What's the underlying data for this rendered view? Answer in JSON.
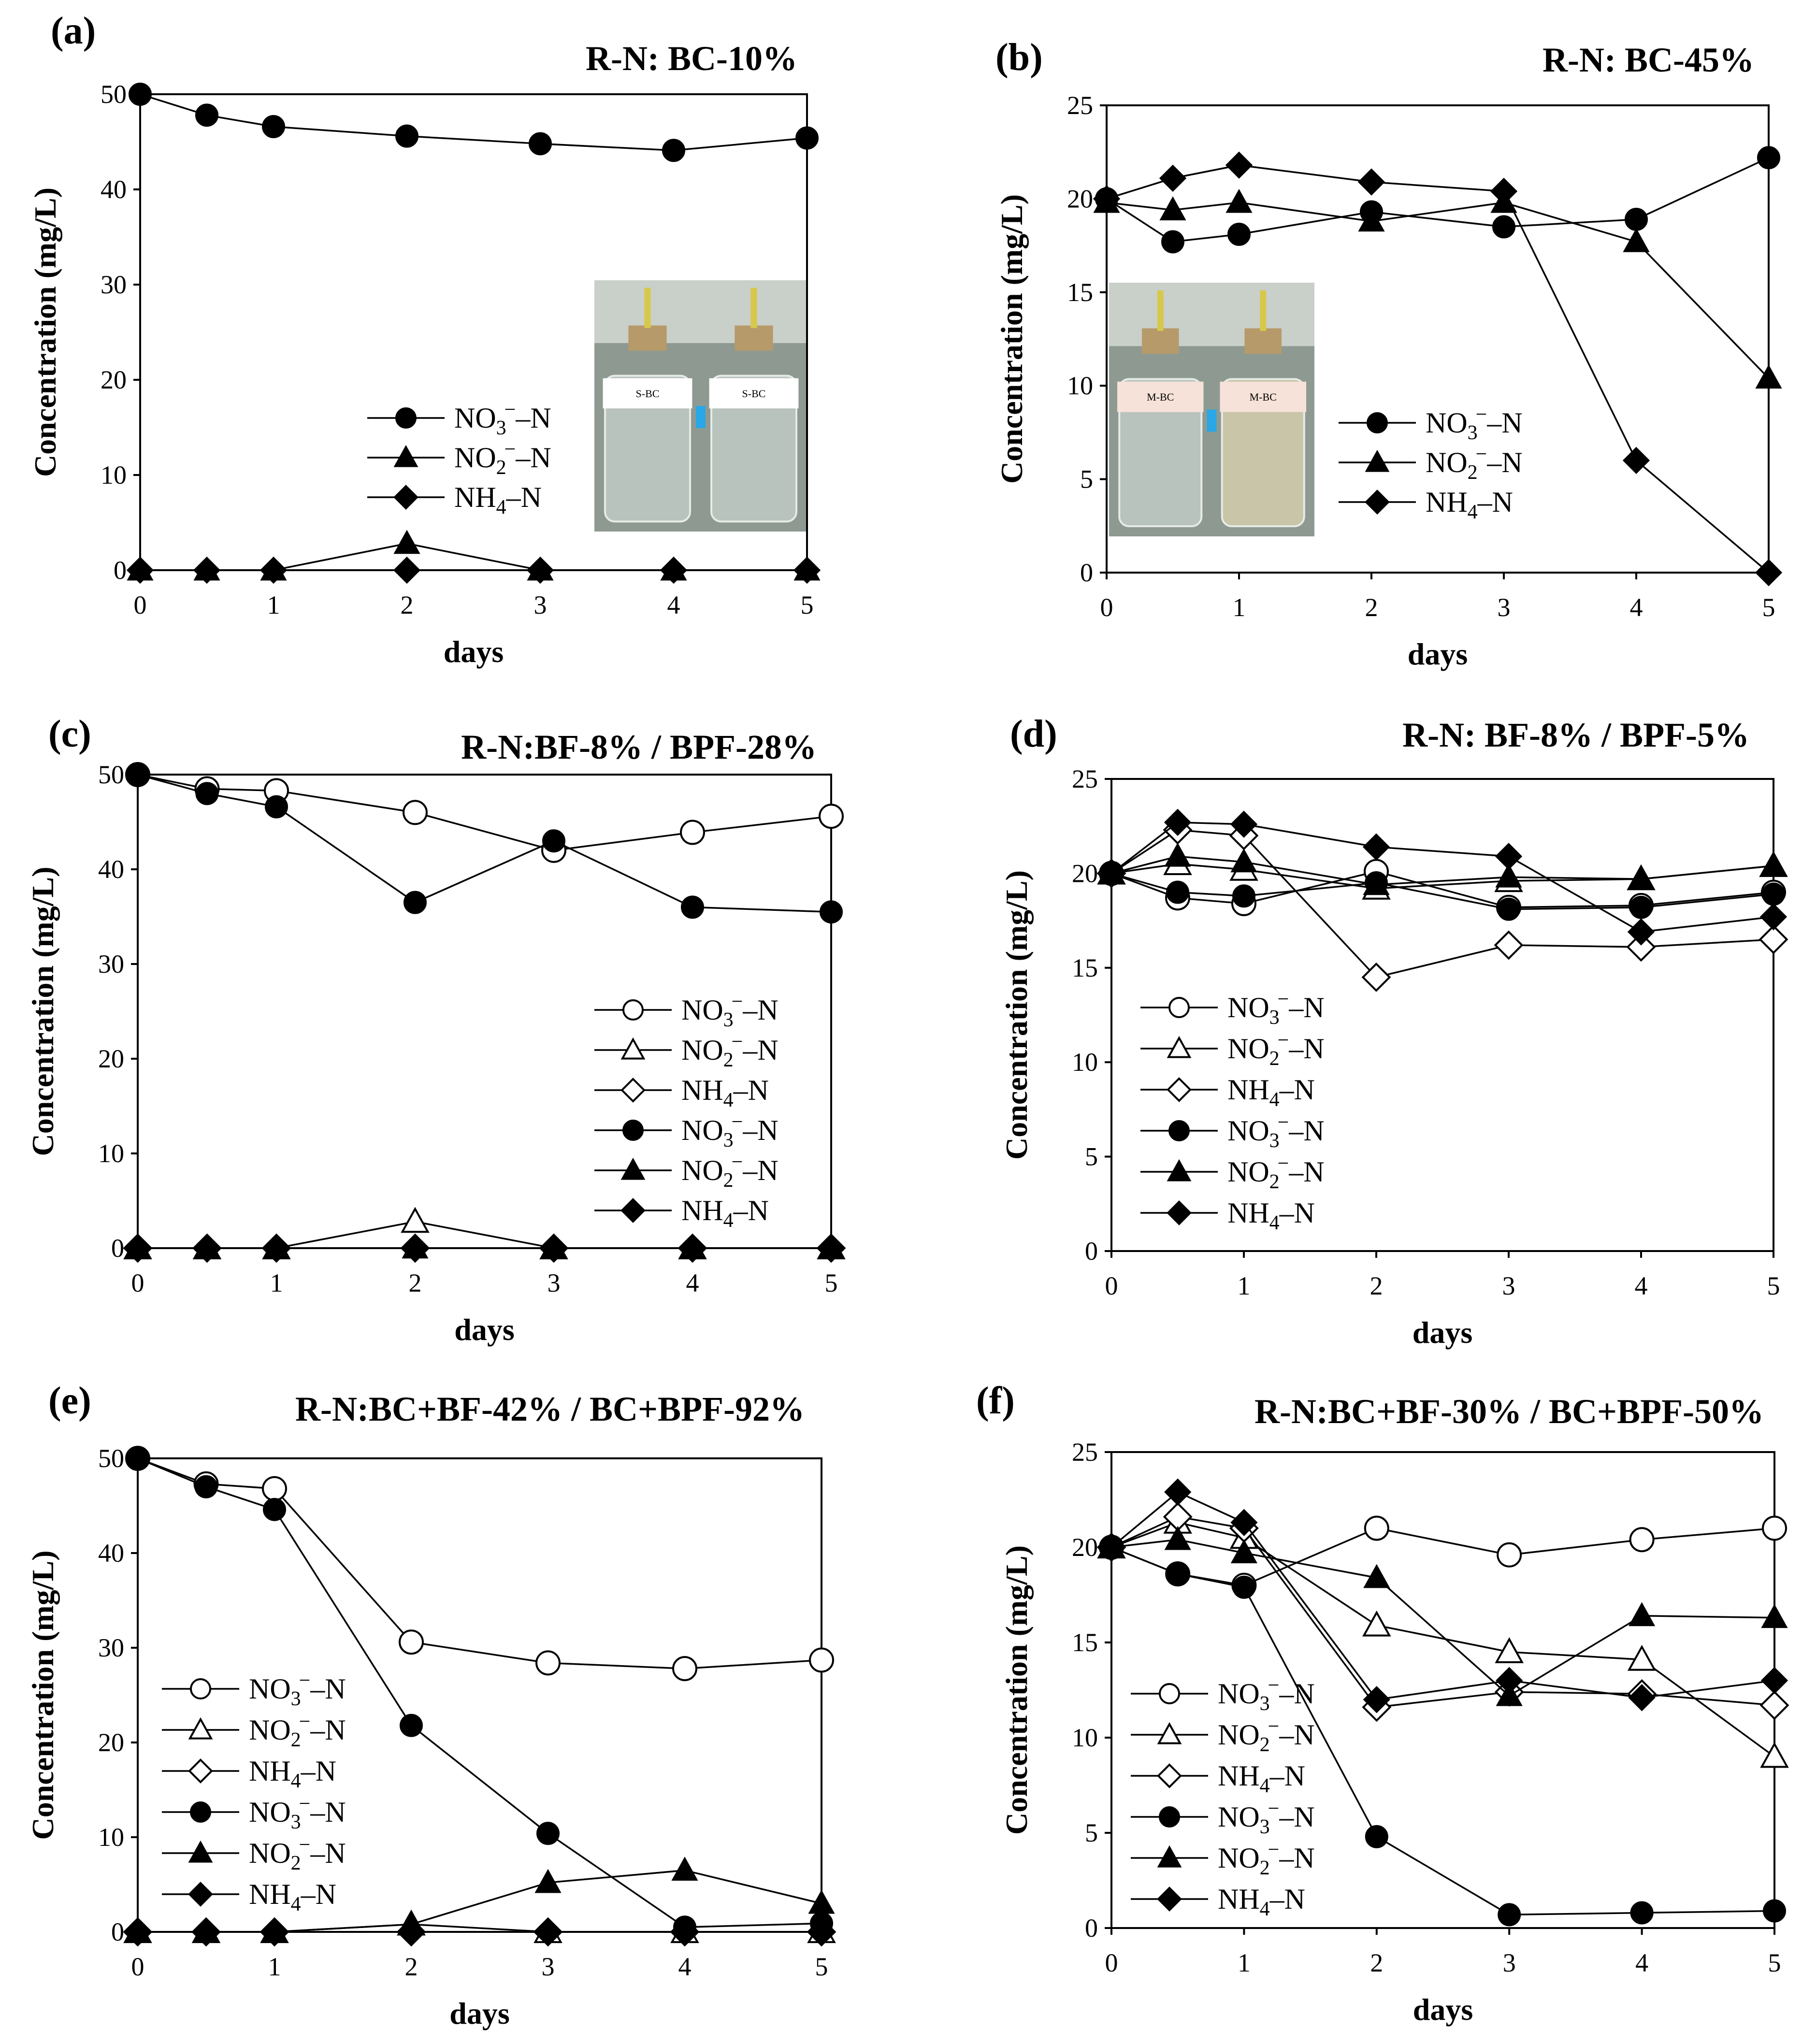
{
  "figure": {
    "panels": [
      {
        "label": "(a)",
        "title": "R-N: BC-10%"
      },
      {
        "label": "(b)",
        "title": "R-N: BC-45%"
      },
      {
        "label": "(c)",
        "title": "R-N:BF-8% / BPF-28%"
      },
      {
        "label": "(d)",
        "title": "R-N: BF-8% / BPF-5%"
      },
      {
        "label": "(e)",
        "title": "R-N:BC+BF-42% / BC+BPF-92%"
      },
      {
        "label": "(f)",
        "title": "R-N:BC+BF-30% / BC+BPF-50%"
      }
    ]
  },
  "chart_data": [
    {
      "type": "line",
      "title": "R-N: BC-10%",
      "label": "(a)",
      "xlabel": "days",
      "ylabel": "Concentration (mg/L)",
      "xlim": [
        0,
        5
      ],
      "ylim": [
        0,
        50
      ],
      "xticks": [
        0,
        1,
        2,
        3,
        4,
        5
      ],
      "yticks": [
        0,
        10,
        20,
        30,
        40,
        50
      ],
      "x": [
        0,
        0.5,
        1,
        2,
        3,
        4,
        5
      ],
      "legend_position": "center-left",
      "inset_photo": {
        "labels": [
          "S-BC",
          "S-BC"
        ]
      },
      "series": [
        {
          "name": "NO3−–N",
          "marker": "circle",
          "filled": true,
          "values": [
            50,
            47.8,
            46.6,
            45.6,
            44.8,
            44.1,
            45.4
          ]
        },
        {
          "name": "NO2−–N",
          "marker": "triangle",
          "filled": true,
          "values": [
            0,
            0,
            0,
            2.8,
            0,
            0,
            0
          ]
        },
        {
          "name": "NH4–N",
          "marker": "diamond",
          "filled": true,
          "values": [
            0,
            0,
            0,
            0,
            0,
            0,
            0
          ]
        }
      ]
    },
    {
      "type": "line",
      "title": "R-N: BC-45%",
      "label": "(b)",
      "xlabel": "days",
      "ylabel": "Concentration (mg/L)",
      "xlim": [
        0,
        5
      ],
      "ylim": [
        0,
        25
      ],
      "xticks": [
        0,
        1,
        2,
        3,
        4,
        5
      ],
      "yticks": [
        0,
        5,
        10,
        15,
        20,
        25
      ],
      "x": [
        0,
        0.5,
        1,
        2,
        3,
        4,
        5
      ],
      "legend_position": "center-right",
      "inset_photo": {
        "labels": [
          "M-BC",
          "M-BC"
        ]
      },
      "series": [
        {
          "name": "NO3−–N",
          "marker": "circle",
          "filled": true,
          "values": [
            20,
            17.7,
            18.1,
            19.3,
            18.5,
            18.9,
            22.2
          ]
        },
        {
          "name": "NO2−–N",
          "marker": "triangle",
          "filled": true,
          "values": [
            19.8,
            19.4,
            19.8,
            18.8,
            19.8,
            17.7,
            10.4
          ]
        },
        {
          "name": "NH4–N",
          "marker": "diamond",
          "filled": true,
          "values": [
            20,
            21.1,
            21.8,
            20.9,
            20.4,
            6,
            0
          ]
        }
      ]
    },
    {
      "type": "line",
      "title": "R-N:BF-8% / BPF-28%",
      "label": "(c)",
      "xlabel": "days",
      "ylabel": "Concentration (mg/L)",
      "xlim": [
        0,
        5
      ],
      "ylim": [
        0,
        50
      ],
      "xticks": [
        0,
        1,
        2,
        3,
        4,
        5
      ],
      "yticks": [
        0,
        10,
        20,
        30,
        40,
        50
      ],
      "x": [
        0,
        0.5,
        1,
        2,
        3,
        4,
        5
      ],
      "legend_position": "lower-right",
      "series": [
        {
          "name": "NO3−–N",
          "marker": "circle",
          "filled": false,
          "values": [
            50,
            48.5,
            48.3,
            46,
            42,
            43.9,
            45.6
          ]
        },
        {
          "name": "NO2−–N",
          "marker": "triangle",
          "filled": false,
          "values": [
            0,
            0,
            0,
            2.8,
            0,
            0,
            0
          ]
        },
        {
          "name": "NH4–N",
          "marker": "diamond",
          "filled": false,
          "values": [
            0,
            0,
            0,
            0,
            0,
            0,
            0
          ]
        },
        {
          "name": "NO3−–N",
          "marker": "circle",
          "filled": true,
          "values": [
            50,
            48,
            46.6,
            36.5,
            43,
            36,
            35.5
          ]
        },
        {
          "name": "NO2−–N",
          "marker": "triangle",
          "filled": true,
          "values": [
            0,
            0,
            0,
            0,
            0,
            0,
            0
          ]
        },
        {
          "name": "NH4–N",
          "marker": "diamond",
          "filled": true,
          "values": [
            0,
            0,
            0,
            0,
            0,
            0,
            0
          ]
        }
      ]
    },
    {
      "type": "line",
      "title": "R-N: BF-8% / BPF-5%",
      "label": "(d)",
      "xlabel": "days",
      "ylabel": "Concentration (mg/L)",
      "xlim": [
        0,
        5
      ],
      "ylim": [
        0,
        25
      ],
      "xticks": [
        0,
        1,
        2,
        3,
        4,
        5
      ],
      "yticks": [
        0,
        5,
        10,
        15,
        20,
        25
      ],
      "x": [
        0,
        0.5,
        1,
        2,
        3,
        4,
        5
      ],
      "legend_position": "lower-left",
      "series": [
        {
          "name": "NO3−–N",
          "marker": "circle",
          "filled": false,
          "values": [
            20,
            18.7,
            18.4,
            20.1,
            18.2,
            18.3,
            19
          ]
        },
        {
          "name": "NO2−–N",
          "marker": "triangle",
          "filled": false,
          "values": [
            20,
            20.5,
            20.2,
            19.2,
            19.6,
            19.7,
            20.4
          ]
        },
        {
          "name": "NH4–N",
          "marker": "diamond",
          "filled": false,
          "values": [
            20,
            22.3,
            22,
            14.5,
            16.2,
            16.1,
            16.5
          ]
        },
        {
          "name": "NO3−–N",
          "marker": "circle",
          "filled": true,
          "values": [
            20,
            19,
            18.8,
            19.5,
            18.1,
            18.2,
            18.9
          ]
        },
        {
          "name": "NO2−–N",
          "marker": "triangle",
          "filled": true,
          "values": [
            20,
            20.9,
            20.6,
            19.4,
            19.8,
            19.7,
            20.4
          ]
        },
        {
          "name": "NH4–N",
          "marker": "diamond",
          "filled": true,
          "values": [
            20,
            22.7,
            22.6,
            21.4,
            20.9,
            16.9,
            17.7
          ]
        }
      ]
    },
    {
      "type": "line",
      "title": "R-N:BC+BF-42% / BC+BPF-92%",
      "label": "(e)",
      "xlabel": "days",
      "ylabel": "Concentration (mg/L)",
      "xlim": [
        0,
        5
      ],
      "ylim": [
        0,
        50
      ],
      "xticks": [
        0,
        1,
        2,
        3,
        4,
        5
      ],
      "yticks": [
        0,
        10,
        20,
        30,
        40,
        50
      ],
      "x": [
        0,
        0.5,
        1,
        2,
        3,
        4,
        5
      ],
      "legend_position": "lower-left",
      "series": [
        {
          "name": "NO3−–N",
          "marker": "circle",
          "filled": false,
          "values": [
            50,
            47.3,
            46.8,
            30.6,
            28.4,
            27.8,
            28.7
          ]
        },
        {
          "name": "NO2−–N",
          "marker": "triangle",
          "filled": false,
          "values": [
            0,
            0,
            0,
            0.8,
            0,
            0,
            0
          ]
        },
        {
          "name": "NH4–N",
          "marker": "diamond",
          "filled": false,
          "values": [
            0,
            0,
            0,
            0,
            0,
            0,
            0
          ]
        },
        {
          "name": "NO3−–N",
          "marker": "circle",
          "filled": true,
          "values": [
            50,
            47,
            44.6,
            21.8,
            10.4,
            0.5,
            0.9
          ]
        },
        {
          "name": "NO2−–N",
          "marker": "triangle",
          "filled": true,
          "values": [
            0,
            0,
            0,
            0.8,
            5.2,
            6.5,
            3
          ]
        },
        {
          "name": "NH4–N",
          "marker": "diamond",
          "filled": true,
          "values": [
            0,
            0,
            0,
            0,
            0,
            0,
            0
          ]
        }
      ]
    },
    {
      "type": "line",
      "title": "R-N:BC+BF-30% / BC+BPF-50%",
      "label": "(f)",
      "xlabel": "days",
      "ylabel": "Concentration (mg/L)",
      "xlim": [
        0,
        5
      ],
      "ylim": [
        0,
        25
      ],
      "xticks": [
        0,
        1,
        2,
        3,
        4,
        5
      ],
      "yticks": [
        0,
        5,
        10,
        15,
        20,
        25
      ],
      "x": [
        0,
        0.5,
        1,
        2,
        3,
        4,
        5
      ],
      "legend_position": "lower-left",
      "series": [
        {
          "name": "NO3−–N",
          "marker": "circle",
          "filled": false,
          "values": [
            20,
            18.6,
            18,
            21,
            19.6,
            20.4,
            21
          ]
        },
        {
          "name": "NO2−–N",
          "marker": "triangle",
          "filled": false,
          "values": [
            20,
            21.3,
            20.5,
            15.9,
            14.5,
            14.1,
            9
          ]
        },
        {
          "name": "NH4–N",
          "marker": "diamond",
          "filled": false,
          "values": [
            20,
            21.6,
            21,
            11.6,
            12.4,
            12.3,
            11.7
          ]
        },
        {
          "name": "NO3−–N",
          "marker": "circle",
          "filled": true,
          "values": [
            20,
            18.6,
            17.9,
            4.8,
            0.7,
            0.8,
            0.9
          ]
        },
        {
          "name": "NO2−–N",
          "marker": "triangle",
          "filled": true,
          "values": [
            20,
            20.4,
            19.7,
            18.4,
            12.2,
            16.4,
            16.3
          ]
        },
        {
          "name": "NH4–N",
          "marker": "diamond",
          "filled": true,
          "values": [
            20,
            22.9,
            21.3,
            12,
            13,
            12.1,
            13
          ]
        }
      ]
    }
  ]
}
